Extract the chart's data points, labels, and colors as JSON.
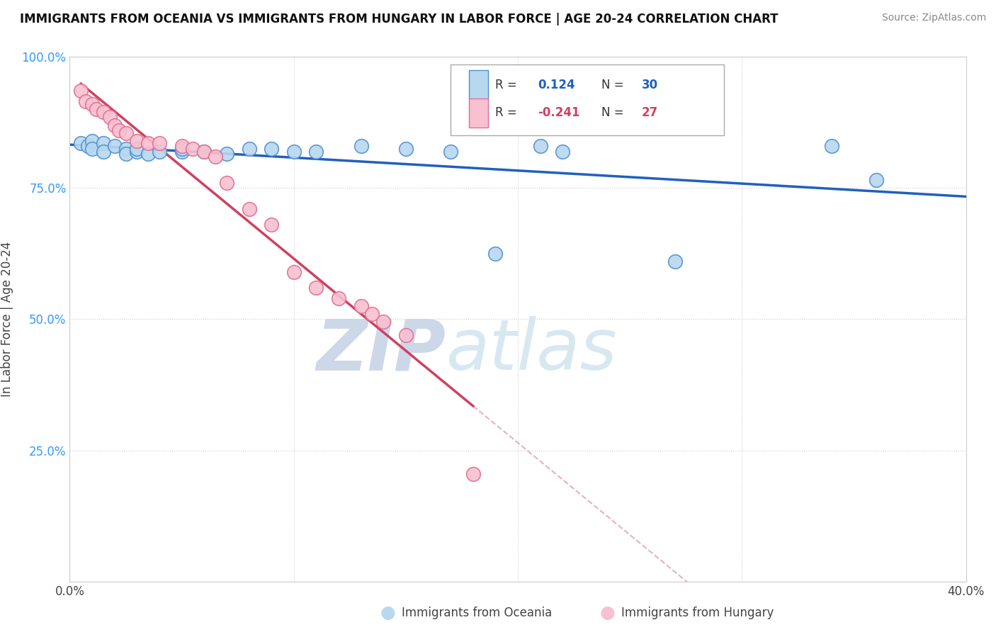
{
  "title": "IMMIGRANTS FROM OCEANIA VS IMMIGRANTS FROM HUNGARY IN LABOR FORCE | AGE 20-24 CORRELATION CHART",
  "source": "Source: ZipAtlas.com",
  "ylabel": "In Labor Force | Age 20-24",
  "xlim": [
    0.0,
    0.4
  ],
  "ylim": [
    0.0,
    1.0
  ],
  "x_ticks": [
    0.0,
    0.1,
    0.2,
    0.3,
    0.4
  ],
  "y_ticks": [
    0.0,
    0.25,
    0.5,
    0.75,
    1.0
  ],
  "legend1_label": "Immigrants from Oceania",
  "legend2_label": "Immigrants from Hungary",
  "R_oceania": 0.124,
  "N_oceania": 30,
  "R_hungary": -0.241,
  "N_hungary": 27,
  "oceania_fill": "#b8d8f0",
  "oceania_edge": "#5090d0",
  "hungary_fill": "#f8c0d0",
  "hungary_edge": "#e07090",
  "oceania_line_color": "#2060c0",
  "hungary_line_color": "#d04060",
  "hungary_dash_color": "#e8b0c0",
  "grid_color": "#cccccc",
  "background_color": "#ffffff",
  "watermark_zip": "ZIP",
  "watermark_atlas": "atlas",
  "watermark_color": "#ccd8e8",
  "oceania_x": [
    0.005,
    0.008,
    0.01,
    0.01,
    0.015,
    0.015,
    0.02,
    0.025,
    0.025,
    0.03,
    0.03,
    0.035,
    0.04,
    0.05,
    0.05,
    0.06,
    0.07,
    0.08,
    0.09,
    0.1,
    0.11,
    0.13,
    0.15,
    0.17,
    0.19,
    0.21,
    0.22,
    0.27,
    0.34,
    0.36
  ],
  "oceania_y": [
    0.835,
    0.83,
    0.84,
    0.825,
    0.835,
    0.82,
    0.83,
    0.825,
    0.815,
    0.82,
    0.825,
    0.815,
    0.82,
    0.82,
    0.825,
    0.82,
    0.815,
    0.825,
    0.825,
    0.82,
    0.82,
    0.83,
    0.825,
    0.82,
    0.625,
    0.83,
    0.82,
    0.61,
    0.83,
    0.765
  ],
  "hungary_x": [
    0.005,
    0.007,
    0.01,
    0.012,
    0.015,
    0.018,
    0.02,
    0.022,
    0.025,
    0.03,
    0.035,
    0.04,
    0.05,
    0.055,
    0.06,
    0.065,
    0.07,
    0.08,
    0.09,
    0.1,
    0.11,
    0.12,
    0.13,
    0.135,
    0.14,
    0.15,
    0.18
  ],
  "hungary_y": [
    0.935,
    0.915,
    0.91,
    0.9,
    0.895,
    0.885,
    0.87,
    0.86,
    0.855,
    0.84,
    0.835,
    0.835,
    0.83,
    0.825,
    0.82,
    0.81,
    0.76,
    0.71,
    0.68,
    0.59,
    0.56,
    0.54,
    0.525,
    0.51,
    0.495,
    0.47,
    0.205
  ]
}
